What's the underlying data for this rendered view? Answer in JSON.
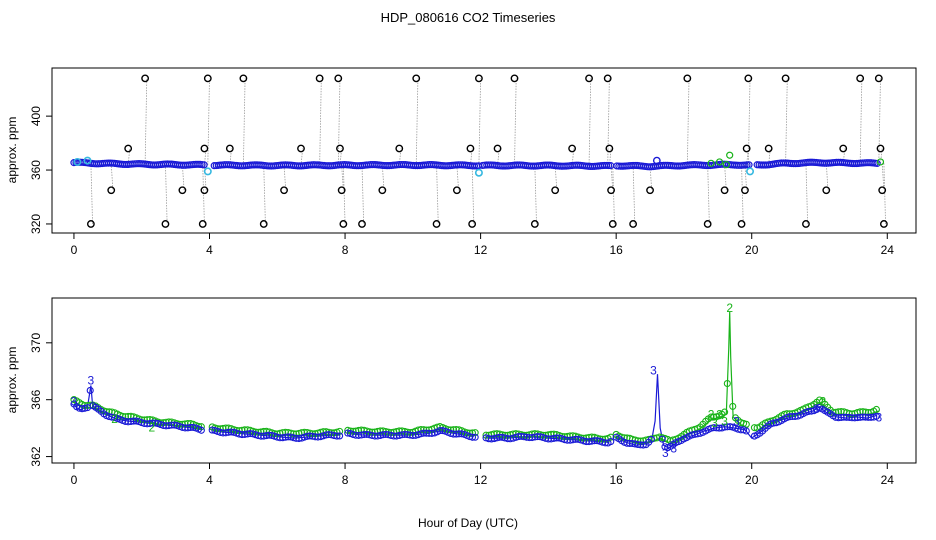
{
  "chart_data": {
    "type": "scatter",
    "title": "HDP_080616  CO2 Timeseries",
    "xlabel": "Hour of Day (UTC)",
    "colors": {
      "black": "#000000",
      "blue": "#1a1ad6",
      "cyan": "#36b8e0",
      "green": "#19b319",
      "grey": "#9a9a9a"
    },
    "panels": [
      {
        "ylabel": "approx. ppm",
        "xlim": [
          -0.5,
          24.7
        ],
        "ylim": [
          317,
          432
        ],
        "x_ticks": [
          0,
          4,
          8,
          12,
          16,
          20,
          24
        ],
        "y_ticks": [
          320,
          360,
          400
        ],
        "baseline": [
          {
            "x": 0.0,
            "y": 365.5
          },
          {
            "x": 1.0,
            "y": 364.8
          },
          {
            "x": 2.0,
            "y": 364.3
          },
          {
            "x": 3.0,
            "y": 364.0
          },
          {
            "x": 3.8,
            "y": 363.8
          },
          {
            "x": 4.2,
            "y": 363.6
          },
          {
            "x": 6.0,
            "y": 363.4
          },
          {
            "x": 8.0,
            "y": 363.6
          },
          {
            "x": 10.0,
            "y": 363.7
          },
          {
            "x": 12.0,
            "y": 363.4
          },
          {
            "x": 14.0,
            "y": 363.3
          },
          {
            "x": 15.8,
            "y": 363.0
          },
          {
            "x": 16.0,
            "y": 363.3
          },
          {
            "x": 17.0,
            "y": 362.8
          },
          {
            "x": 18.0,
            "y": 363.5
          },
          {
            "x": 19.5,
            "y": 364.0
          },
          {
            "x": 20.0,
            "y": 363.5
          },
          {
            "x": 21.0,
            "y": 365.0
          },
          {
            "x": 22.0,
            "y": 365.5
          },
          {
            "x": 23.7,
            "y": 365.0
          }
        ],
        "gaps": [
          [
            3.85,
            4.1
          ],
          [
            11.95,
            12.05
          ],
          [
            15.85,
            16.0
          ],
          [
            19.95,
            20.1
          ]
        ],
        "outliers": [
          {
            "x": 0.5,
            "y": 320
          },
          {
            "x": 1.1,
            "y": 345
          },
          {
            "x": 1.6,
            "y": 376
          },
          {
            "x": 2.1,
            "y": 428
          },
          {
            "x": 2.7,
            "y": 320
          },
          {
            "x": 3.2,
            "y": 345
          },
          {
            "x": 3.8,
            "y": 320
          },
          {
            "x": 3.85,
            "y": 345
          },
          {
            "x": 3.85,
            "y": 376
          },
          {
            "x": 3.95,
            "y": 428
          },
          {
            "x": 4.6,
            "y": 376
          },
          {
            "x": 5.0,
            "y": 428
          },
          {
            "x": 5.6,
            "y": 320
          },
          {
            "x": 6.2,
            "y": 345
          },
          {
            "x": 6.7,
            "y": 376
          },
          {
            "x": 7.25,
            "y": 428
          },
          {
            "x": 7.8,
            "y": 428
          },
          {
            "x": 7.85,
            "y": 376
          },
          {
            "x": 7.9,
            "y": 345
          },
          {
            "x": 7.95,
            "y": 320
          },
          {
            "x": 8.5,
            "y": 320
          },
          {
            "x": 9.1,
            "y": 345
          },
          {
            "x": 9.6,
            "y": 376
          },
          {
            "x": 10.1,
            "y": 428
          },
          {
            "x": 10.7,
            "y": 320
          },
          {
            "x": 11.3,
            "y": 345
          },
          {
            "x": 11.7,
            "y": 376
          },
          {
            "x": 11.75,
            "y": 320
          },
          {
            "x": 11.95,
            "y": 428
          },
          {
            "x": 12.5,
            "y": 376
          },
          {
            "x": 13.0,
            "y": 428
          },
          {
            "x": 13.6,
            "y": 320
          },
          {
            "x": 14.2,
            "y": 345
          },
          {
            "x": 14.7,
            "y": 376
          },
          {
            "x": 15.2,
            "y": 428
          },
          {
            "x": 15.75,
            "y": 428
          },
          {
            "x": 15.8,
            "y": 376
          },
          {
            "x": 15.85,
            "y": 345
          },
          {
            "x": 15.9,
            "y": 320
          },
          {
            "x": 16.5,
            "y": 320
          },
          {
            "x": 17.0,
            "y": 345
          },
          {
            "x": 17.2,
            "y": 367
          },
          {
            "x": 18.1,
            "y": 428
          },
          {
            "x": 18.7,
            "y": 320
          },
          {
            "x": 19.2,
            "y": 345
          },
          {
            "x": 19.7,
            "y": 320
          },
          {
            "x": 19.8,
            "y": 345
          },
          {
            "x": 19.85,
            "y": 376
          },
          {
            "x": 19.9,
            "y": 428
          },
          {
            "x": 20.5,
            "y": 376
          },
          {
            "x": 21.0,
            "y": 428
          },
          {
            "x": 21.6,
            "y": 320
          },
          {
            "x": 22.2,
            "y": 345
          },
          {
            "x": 22.7,
            "y": 376
          },
          {
            "x": 23.2,
            "y": 428
          },
          {
            "x": 23.75,
            "y": 428
          },
          {
            "x": 23.8,
            "y": 376
          },
          {
            "x": 23.85,
            "y": 345
          },
          {
            "x": 23.9,
            "y": 320
          }
        ],
        "cyan_points": [
          {
            "x": 0.1,
            "y": 366
          },
          {
            "x": 0.4,
            "y": 367
          },
          {
            "x": 3.95,
            "y": 359
          },
          {
            "x": 11.95,
            "y": 358
          },
          {
            "x": 19.95,
            "y": 359
          }
        ],
        "green_points": [
          {
            "x": 18.8,
            "y": 365
          },
          {
            "x": 19.05,
            "y": 366
          },
          {
            "x": 19.25,
            "y": 364
          },
          {
            "x": 19.35,
            "y": 371
          },
          {
            "x": 23.8,
            "y": 366
          }
        ]
      },
      {
        "ylabel": "approx. ppm",
        "xlim": [
          -0.5,
          24.7
        ],
        "ylim": [
          361.9,
          372.8
        ],
        "x_ticks": [
          0,
          4,
          8,
          12,
          16,
          20,
          24
        ],
        "y_ticks": [
          362,
          366,
          370
        ],
        "blue_series": [
          {
            "x": 0.0,
            "y": 365.7
          },
          {
            "x": 0.1,
            "y": 365.4
          },
          {
            "x": 0.2,
            "y": 365.3
          },
          {
            "x": 0.3,
            "y": 365.4
          },
          {
            "x": 0.4,
            "y": 365.5
          },
          {
            "x": 0.5,
            "y": 367.0
          },
          {
            "x": 0.55,
            "y": 365.6
          },
          {
            "x": 0.7,
            "y": 365.3
          },
          {
            "x": 0.9,
            "y": 365.0
          },
          {
            "x": 1.1,
            "y": 364.8
          },
          {
            "x": 1.3,
            "y": 364.6
          },
          {
            "x": 1.6,
            "y": 364.5
          },
          {
            "x": 2.0,
            "y": 364.4
          },
          {
            "x": 2.4,
            "y": 364.3
          },
          {
            "x": 2.8,
            "y": 364.2
          },
          {
            "x": 3.2,
            "y": 364.1
          },
          {
            "x": 3.5,
            "y": 364.0
          },
          {
            "x": 3.75,
            "y": 363.9
          },
          {
            "x": 4.1,
            "y": 363.8
          },
          {
            "x": 4.5,
            "y": 363.7
          },
          {
            "x": 5.0,
            "y": 363.6
          },
          {
            "x": 5.5,
            "y": 363.5
          },
          {
            "x": 6.0,
            "y": 363.4
          },
          {
            "x": 6.5,
            "y": 363.3
          },
          {
            "x": 7.0,
            "y": 363.4
          },
          {
            "x": 7.6,
            "y": 363.5
          },
          {
            "x": 7.85,
            "y": 363.5
          },
          {
            "x": 8.1,
            "y": 363.6
          },
          {
            "x": 8.6,
            "y": 363.5
          },
          {
            "x": 9.2,
            "y": 363.5
          },
          {
            "x": 9.8,
            "y": 363.5
          },
          {
            "x": 10.4,
            "y": 363.6
          },
          {
            "x": 10.8,
            "y": 363.8
          },
          {
            "x": 11.3,
            "y": 363.6
          },
          {
            "x": 11.8,
            "y": 363.4
          },
          {
            "x": 12.2,
            "y": 363.3
          },
          {
            "x": 12.8,
            "y": 363.3
          },
          {
            "x": 13.4,
            "y": 363.4
          },
          {
            "x": 14.0,
            "y": 363.3
          },
          {
            "x": 14.6,
            "y": 363.2
          },
          {
            "x": 15.2,
            "y": 363.1
          },
          {
            "x": 15.8,
            "y": 363.0
          },
          {
            "x": 16.0,
            "y": 363.3
          },
          {
            "x": 16.3,
            "y": 363.0
          },
          {
            "x": 16.6,
            "y": 362.8
          },
          {
            "x": 16.9,
            "y": 362.9
          },
          {
            "x": 17.05,
            "y": 363.2
          },
          {
            "x": 17.15,
            "y": 364.5
          },
          {
            "x": 17.22,
            "y": 367.8
          },
          {
            "x": 17.3,
            "y": 364.0
          },
          {
            "x": 17.4,
            "y": 362.8
          },
          {
            "x": 17.55,
            "y": 362.6
          },
          {
            "x": 17.8,
            "y": 363.0
          },
          {
            "x": 18.0,
            "y": 363.3
          },
          {
            "x": 18.3,
            "y": 363.5
          },
          {
            "x": 18.6,
            "y": 363.8
          },
          {
            "x": 18.9,
            "y": 364.0
          },
          {
            "x": 19.2,
            "y": 364.1
          },
          {
            "x": 19.5,
            "y": 364.0
          },
          {
            "x": 19.8,
            "y": 363.9
          },
          {
            "x": 20.0,
            "y": 363.3
          },
          {
            "x": 20.3,
            "y": 363.8
          },
          {
            "x": 20.6,
            "y": 364.3
          },
          {
            "x": 20.9,
            "y": 364.6
          },
          {
            "x": 21.2,
            "y": 364.8
          },
          {
            "x": 21.5,
            "y": 365.0
          },
          {
            "x": 21.8,
            "y": 365.2
          },
          {
            "x": 22.0,
            "y": 365.5
          },
          {
            "x": 22.2,
            "y": 365.1
          },
          {
            "x": 22.5,
            "y": 364.8
          },
          {
            "x": 22.8,
            "y": 364.7
          },
          {
            "x": 23.1,
            "y": 364.8
          },
          {
            "x": 23.4,
            "y": 364.7
          },
          {
            "x": 23.7,
            "y": 364.9
          }
        ],
        "green_series": [
          {
            "x": 0.0,
            "y": 365.8
          },
          {
            "x": 0.3,
            "y": 365.5
          },
          {
            "x": 0.6,
            "y": 365.4
          },
          {
            "x": 1.0,
            "y": 365.0
          },
          {
            "x": 1.5,
            "y": 364.7
          },
          {
            "x": 2.0,
            "y": 364.5
          },
          {
            "x": 2.5,
            "y": 364.3
          },
          {
            "x": 3.0,
            "y": 364.2
          },
          {
            "x": 3.5,
            "y": 364.1
          },
          {
            "x": 3.75,
            "y": 364.0
          },
          {
            "x": 4.1,
            "y": 363.9
          },
          {
            "x": 5.0,
            "y": 363.7
          },
          {
            "x": 6.0,
            "y": 363.5
          },
          {
            "x": 7.0,
            "y": 363.5
          },
          {
            "x": 7.85,
            "y": 363.6
          },
          {
            "x": 8.1,
            "y": 363.7
          },
          {
            "x": 9.0,
            "y": 363.6
          },
          {
            "x": 10.0,
            "y": 363.6
          },
          {
            "x": 10.8,
            "y": 363.9
          },
          {
            "x": 11.8,
            "y": 363.5
          },
          {
            "x": 12.2,
            "y": 363.4
          },
          {
            "x": 13.0,
            "y": 363.4
          },
          {
            "x": 14.0,
            "y": 363.4
          },
          {
            "x": 15.0,
            "y": 363.2
          },
          {
            "x": 15.8,
            "y": 363.1
          },
          {
            "x": 16.0,
            "y": 363.4
          },
          {
            "x": 16.5,
            "y": 363.0
          },
          {
            "x": 17.0,
            "y": 363.0
          },
          {
            "x": 17.3,
            "y": 363.3
          },
          {
            "x": 17.6,
            "y": 362.9
          },
          {
            "x": 18.0,
            "y": 363.4
          },
          {
            "x": 18.5,
            "y": 364.0
          },
          {
            "x": 18.8,
            "y": 364.6
          },
          {
            "x": 19.1,
            "y": 364.8
          },
          {
            "x": 19.25,
            "y": 365.0
          },
          {
            "x": 19.32,
            "y": 369.5
          },
          {
            "x": 19.35,
            "y": 372.2
          },
          {
            "x": 19.38,
            "y": 369.0
          },
          {
            "x": 19.45,
            "y": 364.8
          },
          {
            "x": 19.7,
            "y": 364.2
          },
          {
            "x": 19.9,
            "y": 364.0
          },
          {
            "x": 20.2,
            "y": 363.9
          },
          {
            "x": 20.6,
            "y": 364.4
          },
          {
            "x": 21.0,
            "y": 364.8
          },
          {
            "x": 21.5,
            "y": 365.1
          },
          {
            "x": 22.0,
            "y": 365.8
          },
          {
            "x": 22.4,
            "y": 365.0
          },
          {
            "x": 23.0,
            "y": 364.9
          },
          {
            "x": 23.5,
            "y": 365.0
          },
          {
            "x": 23.75,
            "y": 365.2
          }
        ],
        "labels": [
          {
            "x": 0.0,
            "y": 365.8,
            "text": "3",
            "color": "blue"
          },
          {
            "x": 0.5,
            "y": 367.3,
            "text": "3",
            "color": "blue"
          },
          {
            "x": 1.2,
            "y": 364.6,
            "text": "2",
            "color": "green"
          },
          {
            "x": 2.3,
            "y": 364.0,
            "text": "2",
            "color": "green"
          },
          {
            "x": 17.1,
            "y": 368.0,
            "text": "3",
            "color": "blue"
          },
          {
            "x": 17.45,
            "y": 362.2,
            "text": "3",
            "color": "blue"
          },
          {
            "x": 17.7,
            "y": 362.5,
            "text": "3",
            "color": "blue"
          },
          {
            "x": 18.8,
            "y": 364.9,
            "text": "2",
            "color": "green"
          },
          {
            "x": 19.05,
            "y": 364.9,
            "text": "2",
            "color": "green"
          },
          {
            "x": 19.35,
            "y": 372.4,
            "text": "2",
            "color": "green"
          },
          {
            "x": 18.9,
            "y": 364.3,
            "text": "3",
            "color": "green"
          },
          {
            "x": 19.2,
            "y": 364.4,
            "text": "3",
            "color": "green"
          },
          {
            "x": 19.55,
            "y": 364.4,
            "text": "3",
            "color": "blue"
          },
          {
            "x": 22.1,
            "y": 365.8,
            "text": "2",
            "color": "green"
          },
          {
            "x": 21.9,
            "y": 365.3,
            "text": "3",
            "color": "blue"
          },
          {
            "x": 23.75,
            "y": 364.7,
            "text": "3",
            "color": "blue"
          }
        ]
      }
    ]
  }
}
